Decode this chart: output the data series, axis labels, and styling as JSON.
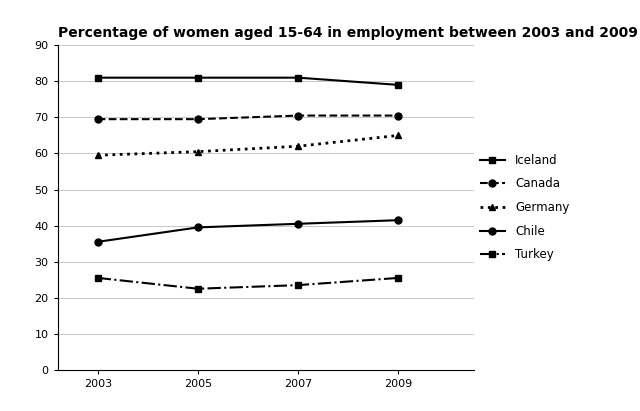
{
  "title": "Percentage of women aged 15-64 in employment between 2003 and 2009",
  "years": [
    2003,
    2005,
    2007,
    2009
  ],
  "series": [
    {
      "name": "Iceland",
      "values": [
        81,
        81,
        81,
        79
      ],
      "linestyle": "-",
      "marker": "s",
      "linewidth": 1.5,
      "markersize": 5
    },
    {
      "name": "Canada",
      "values": [
        69.5,
        69.5,
        70.5,
        70.5
      ],
      "linestyle": "--",
      "marker": "o",
      "linewidth": 1.5,
      "markersize": 5
    },
    {
      "name": "Germany",
      "values": [
        59.5,
        60.5,
        62,
        65
      ],
      "linestyle": ":",
      "marker": "^",
      "linewidth": 2.0,
      "markersize": 5
    },
    {
      "name": "Chile",
      "values": [
        35.5,
        39.5,
        40.5,
        41.5
      ],
      "linestyle": "-",
      "marker": "o",
      "linewidth": 1.5,
      "markersize": 5
    },
    {
      "name": "Turkey",
      "values": [
        25.5,
        22.5,
        23.5,
        25.5
      ],
      "linestyle": "-.",
      "marker": "s",
      "linewidth": 1.5,
      "markersize": 5
    }
  ],
  "ylim": [
    0,
    90
  ],
  "yticks": [
    0,
    10,
    20,
    30,
    40,
    50,
    60,
    70,
    80,
    90
  ],
  "xticks": [
    2003,
    2005,
    2007,
    2009
  ],
  "color": "#000000",
  "background_color": "#ffffff",
  "grid_color": "#c8c8c8",
  "title_fontsize": 10,
  "tick_fontsize": 8,
  "legend_fontsize": 8.5
}
